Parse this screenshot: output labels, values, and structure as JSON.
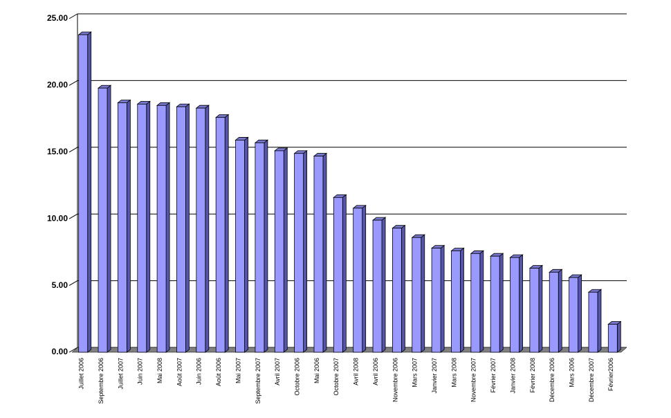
{
  "chart_data": {
    "type": "bar3d",
    "categories": [
      "Juillet 2006",
      "Septembre 2006",
      "Juillet 2007",
      "Juin 2007",
      "Mai 2008",
      "Août 2007",
      "Juin 2006",
      "Août 2006",
      "Mai 2007",
      "Septembre 2007",
      "Avril 2007",
      "Octobre 2006",
      "Mai 2006",
      "Octobre 2007",
      "Avril 2008",
      "Avril 2006",
      "Novembre 2006",
      "Mars 2007",
      "Janvier 2007",
      "Mars 2008",
      "Novembre 2007",
      "Février 2007",
      "Janvier 2008",
      "Février 2008",
      "Décembre 2006",
      "Mars 2006",
      "Décembre 2007",
      "Février2006"
    ],
    "values": [
      23.8,
      19.8,
      18.7,
      18.6,
      18.5,
      18.4,
      18.3,
      17.6,
      15.9,
      15.7,
      15.1,
      14.9,
      14.7,
      11.6,
      10.8,
      9.9,
      9.3,
      8.6,
      7.8,
      7.6,
      7.4,
      7.2,
      7.1,
      6.3,
      6.0,
      5.6,
      4.5,
      2.1
    ],
    "color": "#9999ff",
    "ylim": [
      0,
      25
    ],
    "yticks": [
      {
        "value": 0,
        "label": "0.00"
      },
      {
        "value": 5,
        "label": "5.00"
      },
      {
        "value": 10,
        "label": "10.00"
      },
      {
        "value": 15,
        "label": "15.00"
      },
      {
        "value": 20,
        "label": "20.00"
      },
      {
        "value": 25,
        "label": "25.00"
      }
    ],
    "grid": true
  }
}
